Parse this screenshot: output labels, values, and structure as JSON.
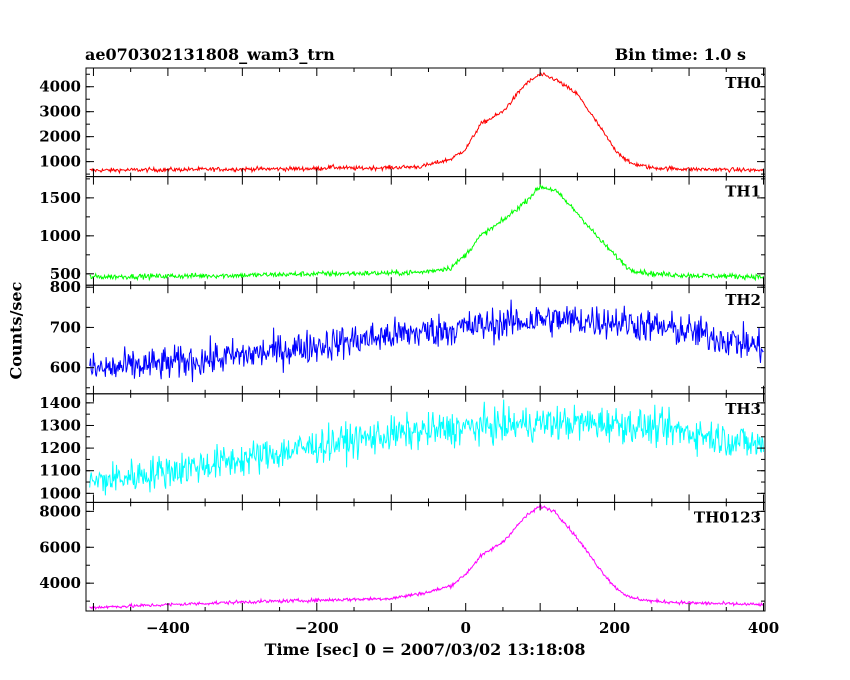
{
  "header": {
    "obs_id": "ae070302131808_wam3_trn",
    "bin_time": "Bin time: 1.0 s"
  },
  "chart_data": {
    "type": "line",
    "xlabel": "Time [sec] 0 = 2007/03/02 13:18:08",
    "ylabel": "Counts/sec",
    "xlim": [
      -510,
      402
    ],
    "xticks": [
      -400,
      -200,
      0,
      200,
      400
    ],
    "grid": false,
    "panels": [
      {
        "name": "TH0",
        "color": "#ff0000",
        "ylim": [
          400,
          4750
        ],
        "yticks": [
          1000,
          2000,
          3000,
          4000
        ],
        "noise": 60,
        "x": [
          -500,
          -400,
          -300,
          -200,
          -180,
          -150,
          -100,
          -60,
          -20,
          0,
          20,
          50,
          80,
          100,
          120,
          150,
          180,
          200,
          220,
          250,
          300,
          350,
          400
        ],
        "y": [
          650,
          680,
          700,
          720,
          780,
          730,
          760,
          800,
          1100,
          1500,
          2500,
          3000,
          4100,
          4500,
          4300,
          3700,
          2400,
          1500,
          950,
          750,
          700,
          680,
          650
        ]
      },
      {
        "name": "TH1",
        "color": "#00ff00",
        "ylim": [
          350,
          1780
        ],
        "yticks": [
          500,
          1000,
          1500
        ],
        "noise": 25,
        "x": [
          -500,
          -400,
          -300,
          -200,
          -100,
          -60,
          -20,
          0,
          20,
          50,
          80,
          100,
          120,
          150,
          180,
          200,
          220,
          250,
          300,
          350,
          400
        ],
        "y": [
          460,
          470,
          480,
          500,
          510,
          520,
          580,
          750,
          1000,
          1200,
          1450,
          1650,
          1600,
          1300,
          950,
          750,
          560,
          500,
          480,
          470,
          460
        ]
      },
      {
        "name": "TH2",
        "color": "#0000ff",
        "ylim": [
          535,
          805
        ],
        "yticks": [
          600,
          700,
          800
        ],
        "noise": 30,
        "x": [
          -500,
          -400,
          -300,
          -200,
          -100,
          0,
          100,
          200,
          300,
          400
        ],
        "y": [
          595,
          610,
          630,
          655,
          680,
          700,
          720,
          715,
          690,
          650
        ]
      },
      {
        "name": "TH3",
        "color": "#00ffff",
        "ylim": [
          960,
          1440
        ],
        "yticks": [
          1000,
          1100,
          1200,
          1300,
          1400
        ],
        "noise": 55,
        "x": [
          -500,
          -400,
          -300,
          -200,
          -100,
          0,
          100,
          200,
          300,
          400
        ],
        "y": [
          1050,
          1100,
          1150,
          1210,
          1260,
          1290,
          1310,
          1310,
          1270,
          1210
        ]
      },
      {
        "name": "TH0123",
        "color": "#ff00ff",
        "ylim": [
          2450,
          8500
        ],
        "yticks": [
          4000,
          6000,
          8000
        ],
        "noise": 70,
        "x": [
          -500,
          -400,
          -300,
          -200,
          -100,
          -50,
          -20,
          0,
          20,
          50,
          80,
          100,
          120,
          150,
          180,
          200,
          220,
          250,
          300,
          350,
          400
        ],
        "y": [
          2650,
          2800,
          2950,
          3050,
          3150,
          3500,
          3850,
          4500,
          5500,
          6300,
          7700,
          8300,
          8000,
          6500,
          4800,
          3800,
          3200,
          3000,
          2900,
          2850,
          2800
        ]
      }
    ]
  }
}
